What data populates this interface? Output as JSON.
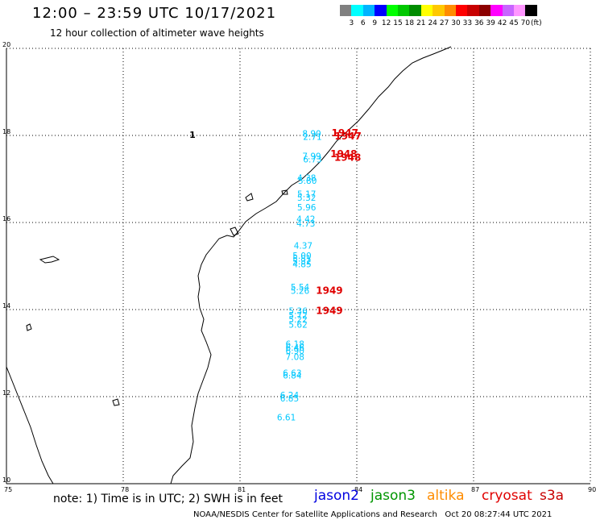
{
  "header": {
    "title": "12:00 – 23:59 UTC 10/17/2021",
    "subtitle": "12 hour collection of altimeter wave heights"
  },
  "legend": {
    "colors": [
      "#808080",
      "#00ffff",
      "#00b4ff",
      "#0000ff",
      "#00ff00",
      "#00c800",
      "#008c00",
      "#ffff00",
      "#ffc800",
      "#ff8c00",
      "#ff0000",
      "#c80000",
      "#8c0000",
      "#ff00ff",
      "#c864ff",
      "#ff96ff",
      "#000000"
    ],
    "labels": [
      "3",
      "6",
      "9",
      "12",
      "15",
      "18",
      "21",
      "24",
      "27",
      "30",
      "33",
      "36",
      "39",
      "42",
      "45",
      "70"
    ],
    "unit": "(ft)"
  },
  "map": {
    "x_ticks": [
      "75",
      "78",
      "81",
      "84",
      "87",
      "90"
    ],
    "y_ticks": [
      "20",
      "18",
      "16",
      "14",
      "12",
      "10"
    ],
    "swh_values": [
      {
        "t": "8.90",
        "lon": 82.6,
        "lat": 17.97
      },
      {
        "t": "2.71",
        "lon": 82.62,
        "lat": 17.9
      },
      {
        "t": "7.99",
        "lon": 82.6,
        "lat": 17.45
      },
      {
        "t": "6.73",
        "lon": 82.62,
        "lat": 17.38
      },
      {
        "t": "4.38",
        "lon": 82.47,
        "lat": 16.95
      },
      {
        "t": "5.80",
        "lon": 82.49,
        "lat": 16.89
      },
      {
        "t": "5.17",
        "lon": 82.47,
        "lat": 16.58
      },
      {
        "t": "5.32",
        "lon": 82.47,
        "lat": 16.5
      },
      {
        "t": "5.96",
        "lon": 82.47,
        "lat": 16.28
      },
      {
        "t": "4.42",
        "lon": 82.45,
        "lat": 16.01
      },
      {
        "t": "4.73",
        "lon": 82.45,
        "lat": 15.91
      },
      {
        "t": "4.37",
        "lon": 82.38,
        "lat": 15.4
      },
      {
        "t": "5.00",
        "lon": 82.35,
        "lat": 15.17
      },
      {
        "t": "5.81",
        "lon": 82.35,
        "lat": 15.1
      },
      {
        "t": "5.32",
        "lon": 82.35,
        "lat": 15.04
      },
      {
        "t": "4.85",
        "lon": 82.35,
        "lat": 14.97
      },
      {
        "t": "5.54",
        "lon": 82.3,
        "lat": 14.44
      },
      {
        "t": "5.26",
        "lon": 82.3,
        "lat": 14.36
      },
      {
        "t": "5.36",
        "lon": 82.25,
        "lat": 13.9
      },
      {
        "t": "5.72",
        "lon": 82.25,
        "lat": 13.8
      },
      {
        "t": "5.22",
        "lon": 82.25,
        "lat": 13.7
      },
      {
        "t": "5.62",
        "lon": 82.25,
        "lat": 13.58
      },
      {
        "t": "6.18",
        "lon": 82.17,
        "lat": 13.14
      },
      {
        "t": "6.46",
        "lon": 82.17,
        "lat": 13.06
      },
      {
        "t": "6.90",
        "lon": 82.17,
        "lat": 12.98
      },
      {
        "t": "7.08",
        "lon": 82.17,
        "lat": 12.84
      },
      {
        "t": "6.63",
        "lon": 82.1,
        "lat": 12.47
      },
      {
        "t": "6.84",
        "lon": 82.1,
        "lat": 12.42
      },
      {
        "t": "6.24",
        "lon": 82.03,
        "lat": 11.96
      },
      {
        "t": "6.85",
        "lon": 82.03,
        "lat": 11.89
      },
      {
        "t": "6.61",
        "lon": 81.95,
        "lat": 11.45
      }
    ],
    "time_labels": [
      {
        "t": "1947",
        "lon": 83.35,
        "lat": 17.98
      },
      {
        "t": "1947",
        "lon": 83.43,
        "lat": 17.91
      },
      {
        "t": "1948",
        "lon": 83.32,
        "lat": 17.5
      },
      {
        "t": "1948",
        "lon": 83.42,
        "lat": 17.42
      },
      {
        "t": "1949",
        "lon": 82.95,
        "lat": 14.36
      },
      {
        "t": "1949",
        "lon": 82.95,
        "lat": 13.9
      }
    ],
    "black_mark": {
      "t": "1",
      "lon": 79.7,
      "lat": 17.94
    }
  },
  "footer": {
    "note": "note:  1) Time is in UTC;  2) SWH is in feet",
    "satellites": [
      {
        "name": "jason2",
        "color": "#0000e0"
      },
      {
        "name": "jason3",
        "color": "#009600"
      },
      {
        "name": "altika",
        "color": "#ff8c00"
      },
      {
        "name": "cryosat",
        "color": "#e00000"
      },
      {
        "name": "s3a",
        "color": "#c80000"
      }
    ],
    "credit": "NOAA/NESDIS Center for Satellite Applications and Research",
    "timestamp": "Oct 20 08:27:44 UTC 2021"
  }
}
